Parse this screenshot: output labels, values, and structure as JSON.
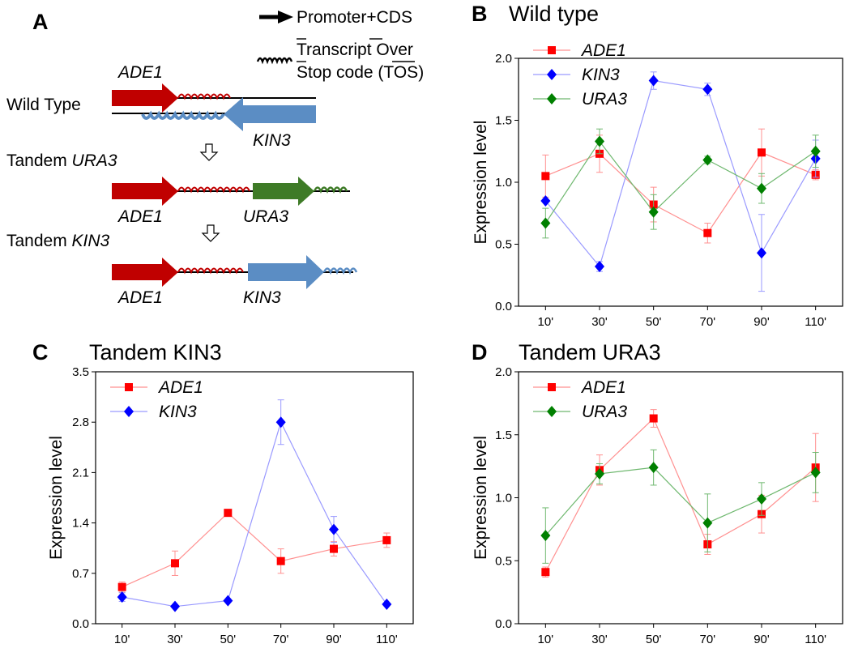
{
  "panel_labels": {
    "A": "A",
    "B": "B",
    "C": "C",
    "D": "D"
  },
  "legend_a": {
    "promoter_cds": "Promoter+CDS",
    "tos_line1": "Transcript Over",
    "tos_line2": "Stop code (TOS)"
  },
  "schematic": {
    "wild_type_label": "Wild Type",
    "tandem_ura3_prefix": "Tandem ",
    "tandem_ura3_gene": "URA3",
    "tandem_kin3_prefix": "Tandem ",
    "tandem_kin3_gene": "KIN3",
    "genes": {
      "ade1": "ADE1",
      "kin3": "KIN3",
      "ura3": "URA3"
    }
  },
  "colors": {
    "ade1": "#ff0000",
    "kin3": "#0000ff",
    "ura3": "#008000",
    "ade1_line": "#ff9090",
    "kin3_line": "#9a9aff",
    "ura3_line": "#6fb86f",
    "red_arrow": "#c00000",
    "blue_arrow": "#5b8dc4",
    "green_arrow": "#3e7b27"
  },
  "chart_data": [
    {
      "id": "B",
      "type": "line",
      "title": "Wild type",
      "ylabel": "Expression level",
      "xlabel": "",
      "categories": [
        "10'",
        "30'",
        "50'",
        "70'",
        "90'",
        "110'"
      ],
      "ylim": [
        0,
        2.0
      ],
      "yticks": [
        "0.0",
        "0.5",
        "1.0",
        "1.5",
        "2.0"
      ],
      "legend": "top-left",
      "series": [
        {
          "name": "ADE1",
          "marker": "square",
          "values": [
            1.05,
            1.23,
            0.82,
            0.59,
            1.24,
            1.06
          ],
          "errors": [
            0.17,
            0.15,
            0.14,
            0.08,
            0.19,
            0.04
          ]
        },
        {
          "name": "KIN3",
          "marker": "diamond",
          "values": [
            0.85,
            0.32,
            1.82,
            1.75,
            0.43,
            1.19
          ],
          "errors": [
            0.0,
            0.04,
            0.07,
            0.05,
            0.31,
            0.15
          ]
        },
        {
          "name": "URA3",
          "marker": "diamond",
          "values": [
            0.67,
            1.33,
            0.76,
            1.18,
            0.95,
            1.25
          ],
          "errors": [
            0.12,
            0.1,
            0.14,
            0.03,
            0.12,
            0.13
          ]
        }
      ]
    },
    {
      "id": "C",
      "type": "line",
      "title": "Tandem KIN3",
      "ylabel": "Expression level",
      "xlabel": "",
      "categories": [
        "10'",
        "30'",
        "50'",
        "70'",
        "90'",
        "110'"
      ],
      "ylim": [
        0,
        3.5
      ],
      "yticks": [
        "0.0",
        "0.7",
        "1.4",
        "2.1",
        "2.8",
        "3.5"
      ],
      "legend": "top-left",
      "series": [
        {
          "name": "ADE1",
          "marker": "square",
          "values": [
            0.51,
            0.84,
            1.54,
            0.87,
            1.04,
            1.16
          ],
          "errors": [
            0.07,
            0.17,
            0.0,
            0.17,
            0.1,
            0.1
          ]
        },
        {
          "name": "KIN3",
          "marker": "diamond",
          "values": [
            0.37,
            0.24,
            0.32,
            2.8,
            1.31,
            0.27
          ],
          "errors": [
            0.06,
            0.0,
            0.0,
            0.31,
            0.18,
            0.0
          ]
        }
      ]
    },
    {
      "id": "D",
      "type": "line",
      "title": "Tandem URA3",
      "ylabel": "Expression level",
      "xlabel": "",
      "categories": [
        "10'",
        "30'",
        "50'",
        "70'",
        "90'",
        "110'"
      ],
      "ylim": [
        0,
        2.0
      ],
      "yticks": [
        "0.0",
        "0.5",
        "1.0",
        "1.5",
        "2.0"
      ],
      "legend": "top-left",
      "series": [
        {
          "name": "ADE1",
          "marker": "square",
          "values": [
            0.41,
            1.22,
            1.63,
            0.63,
            0.87,
            1.24
          ],
          "errors": [
            0.04,
            0.12,
            0.07,
            0.08,
            0.15,
            0.27
          ]
        },
        {
          "name": "URA3",
          "marker": "diamond",
          "values": [
            0.7,
            1.19,
            1.24,
            0.8,
            0.99,
            1.2
          ],
          "errors": [
            0.22,
            0.08,
            0.14,
            0.23,
            0.13,
            0.16
          ]
        }
      ]
    }
  ]
}
